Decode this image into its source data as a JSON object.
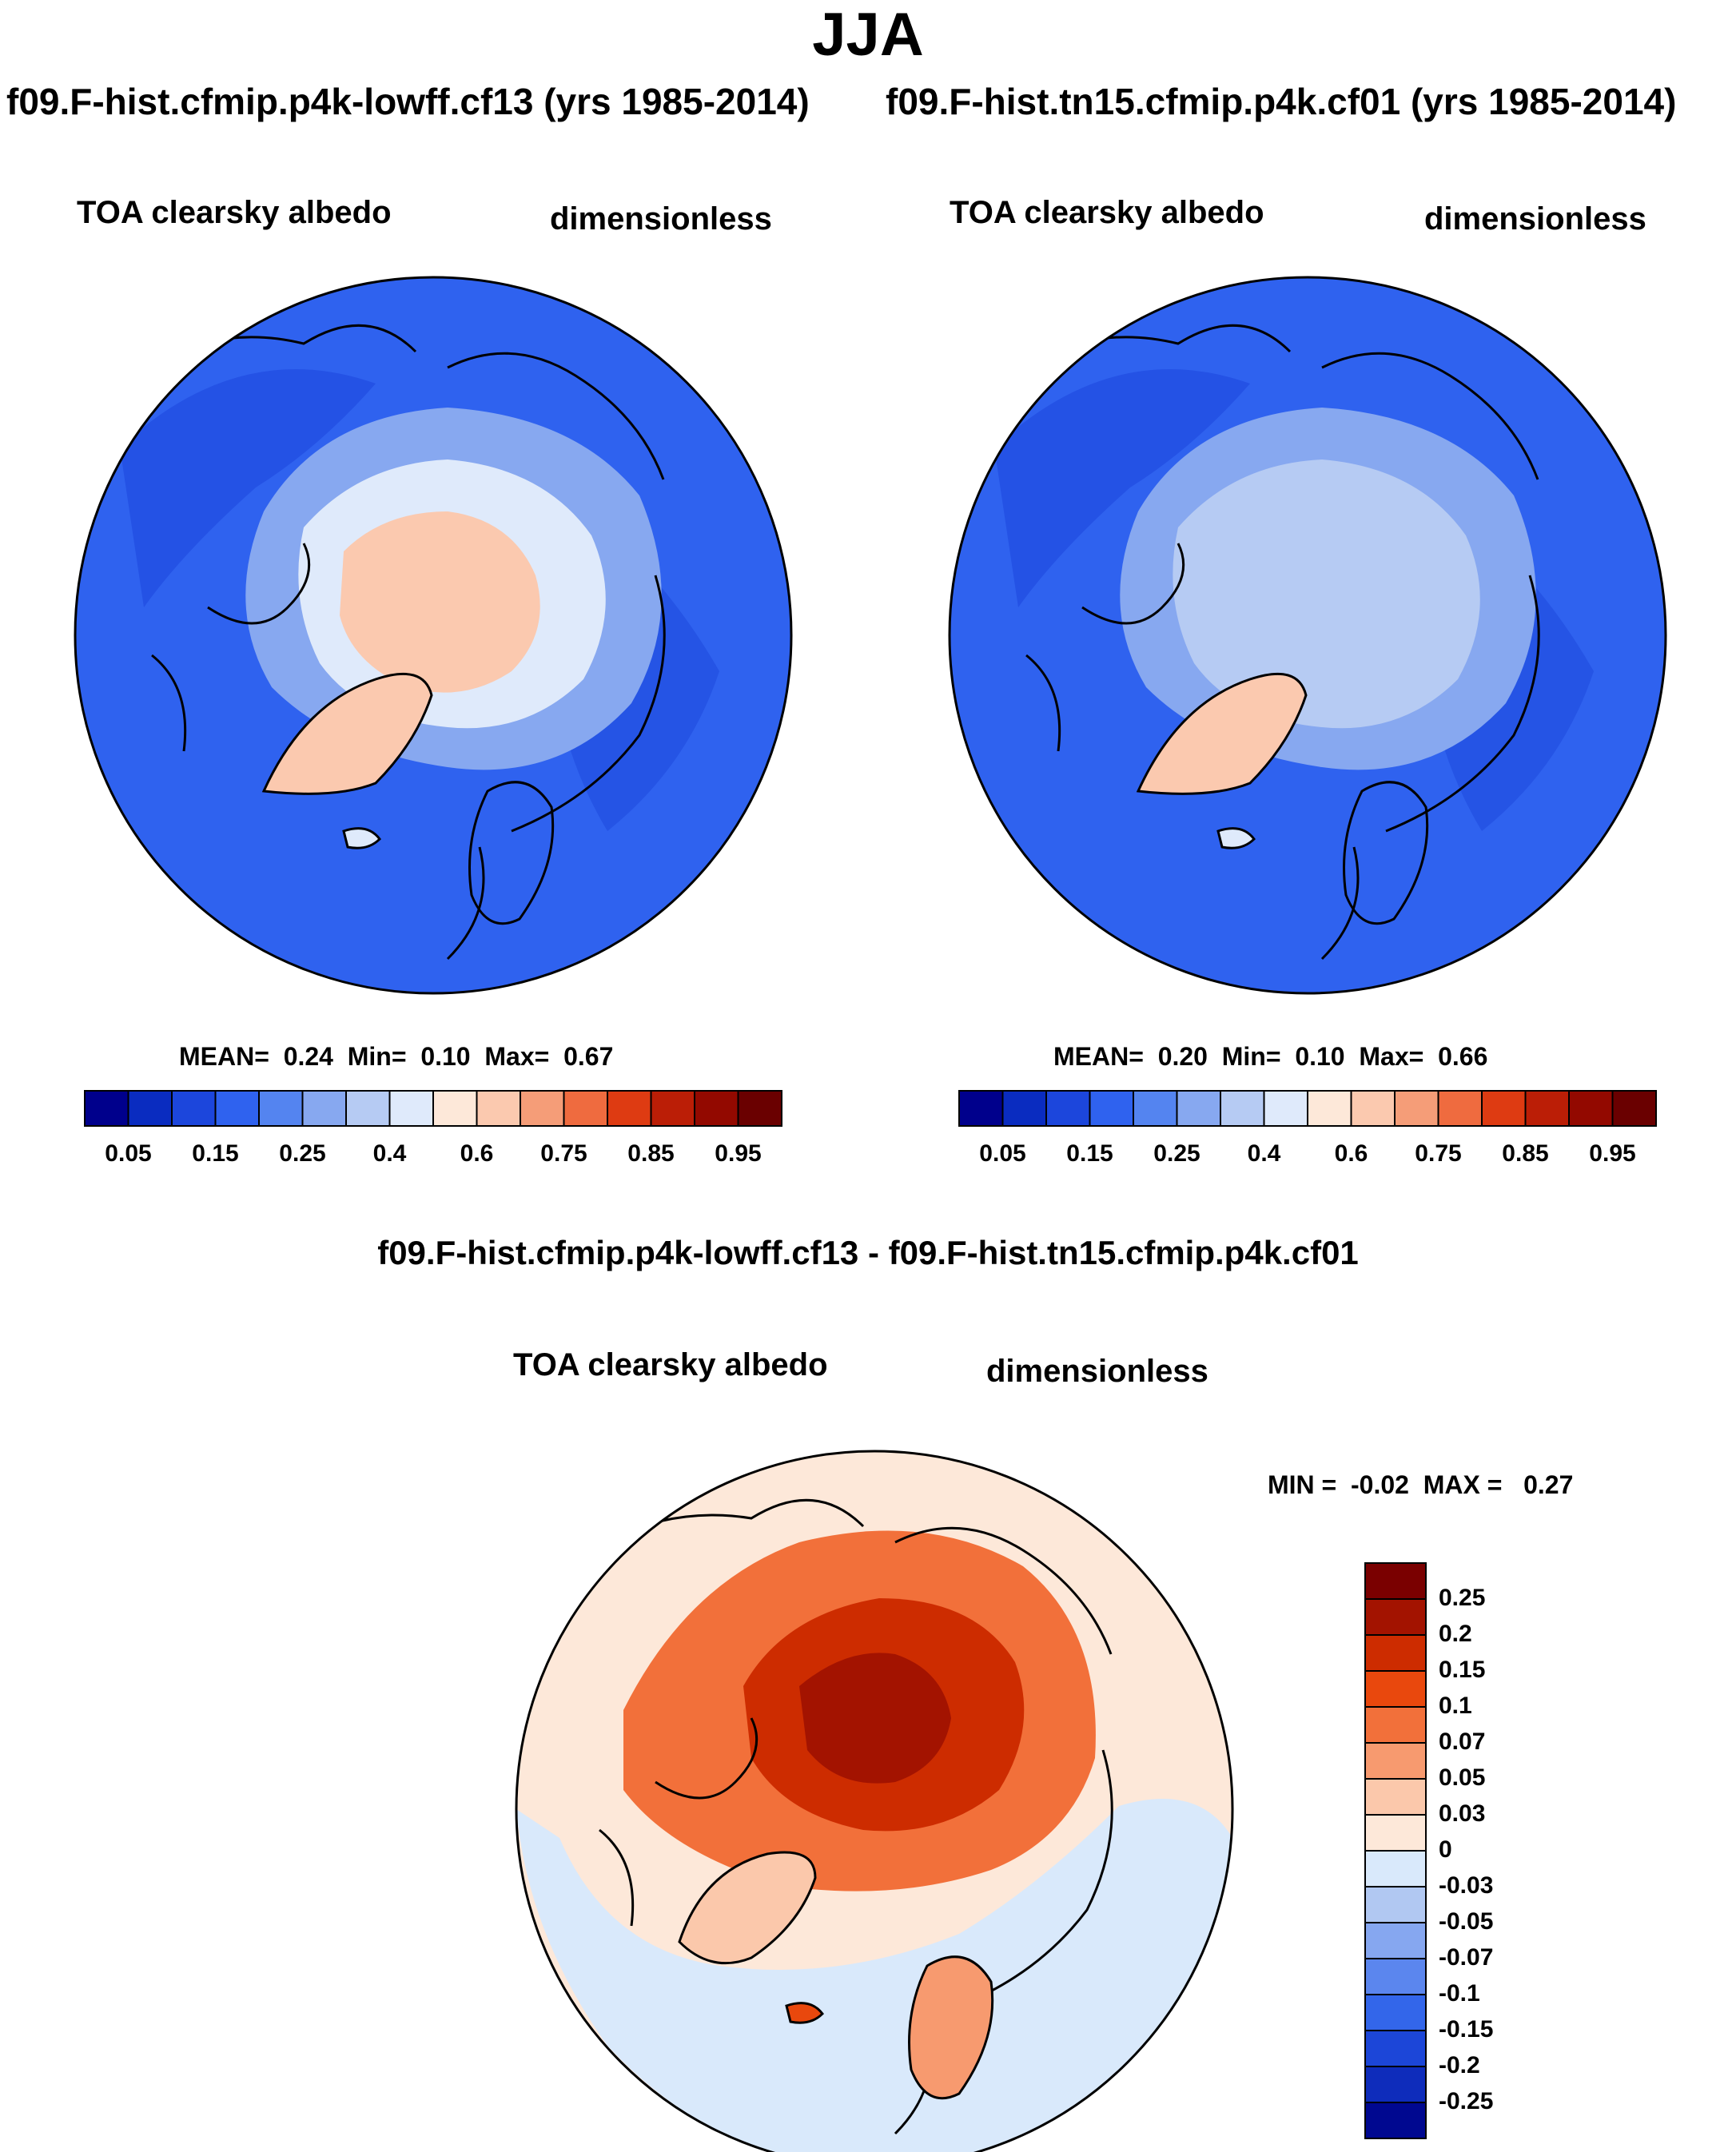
{
  "header": {
    "season": "JJA",
    "case1_title": "f09.F-hist.cfmip.p4k-lowff.cf13 (yrs 1985-2014)",
    "case2_title": "f09.F-hist.tn15.cfmip.p4k.cf01 (yrs 1985-2014)",
    "diff_title": "f09.F-hist.cfmip.p4k-lowff.cf13 - f09.F-hist.tn15.cfmip.p4k.cf01"
  },
  "panels": [
    {
      "id": "case1",
      "variable": "TOA clearsky albedo",
      "units": "dimensionless",
      "stats": {
        "mean_label": "MEAN=",
        "mean": "0.24",
        "min_label": "Min=",
        "min": "0.10",
        "max_label": "Max=",
        "max": "0.67"
      }
    },
    {
      "id": "case2",
      "variable": "TOA clearsky albedo",
      "units": "dimensionless",
      "stats": {
        "mean_label": "MEAN=",
        "mean": "0.20",
        "min_label": "Min=",
        "min": "0.10",
        "max_label": "Max=",
        "max": "0.66"
      }
    },
    {
      "id": "diff",
      "variable": "TOA clearsky albedo",
      "units": "dimensionless",
      "stats": {
        "min_label": "MIN =",
        "min": "-0.02",
        "max_label": "MAX =",
        "max": "0.27"
      }
    }
  ],
  "colorbars": {
    "absolute": {
      "colors": [
        "#00008c",
        "#0a2cc0",
        "#1c46dc",
        "#2f62ef",
        "#5484f0",
        "#87a8f0",
        "#b6cbf3",
        "#dfeafb",
        "#fde8d9",
        "#fbc9af",
        "#f59d78",
        "#ef6b3f",
        "#de3b12",
        "#bb1e06",
        "#930900",
        "#6a0000"
      ],
      "tick_labels": [
        "0.05",
        "0.15",
        "0.25",
        "0.4",
        "0.6",
        "0.75",
        "0.85",
        "0.95"
      ]
    },
    "difference": {
      "colors": [
        "#7a0000",
        "#a31300",
        "#cd2c00",
        "#e9480d",
        "#f2703a",
        "#f79a6f",
        "#fbc8ab",
        "#fde8d9",
        "#d9e9fb",
        "#b1c8f2",
        "#86a7f0",
        "#5b86ee",
        "#3366ea",
        "#1c46d8",
        "#0e2cbb",
        "#000890"
      ],
      "tick_labels": [
        "0.25",
        "0.2",
        "0.15",
        "0.1",
        "0.07",
        "0.05",
        "0.03",
        "0",
        "-0.03",
        "-0.05",
        "-0.07",
        "-0.1",
        "-0.15",
        "-0.2",
        "-0.25"
      ]
    }
  },
  "maps": [
    {
      "id": "case1",
      "background": "#2f62ef",
      "polar_cap": "#fbc9af",
      "ice_ring": "#dfeafb",
      "greenland": "#fbc9af"
    },
    {
      "id": "case2",
      "background": "#2f62ef",
      "polar_cap": "#b6cbf3",
      "ice_ring": "#87a8f0",
      "greenland": "#fbc9af"
    },
    {
      "id": "diff",
      "background": "#d9e9fb",
      "polar_cap": "#a31300",
      "ice_ring": "#e9480d",
      "greenland": "#fbc8ab"
    }
  ]
}
